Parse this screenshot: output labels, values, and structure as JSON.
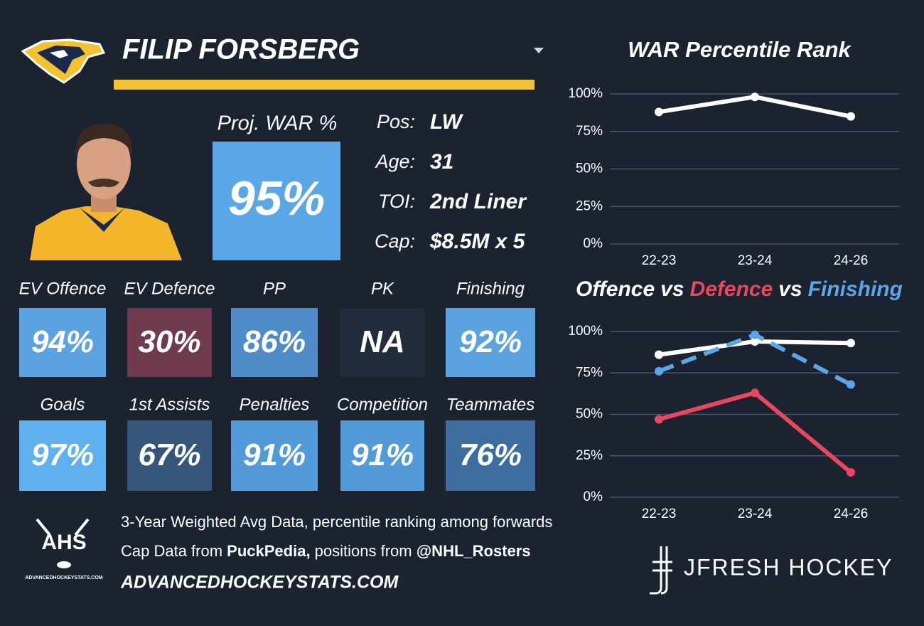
{
  "header": {
    "name": "FILIP FORSBERG",
    "bar_color": "#f4c131"
  },
  "proj_war": {
    "label": "Proj. WAR %",
    "value": "95%",
    "color": "#5aa6e6"
  },
  "info": [
    {
      "label": "Pos:",
      "value": "LW"
    },
    {
      "label": "Age:",
      "value": "31"
    },
    {
      "label": "TOI:",
      "value": "2nd Liner"
    },
    {
      "label": "Cap:",
      "value": "$8.5M x 5"
    }
  ],
  "tiles": [
    [
      {
        "label": "EV Offence",
        "value": "94%",
        "color": "#5aa2e0"
      },
      {
        "label": "EV Defence",
        "value": "30%",
        "color": "#6f3a4d"
      },
      {
        "label": "PP",
        "value": "86%",
        "color": "#4f8cc9"
      },
      {
        "label": "PK",
        "value": "NA",
        "color": "#212d3b"
      },
      {
        "label": "Finishing",
        "value": "92%",
        "color": "#5aa2e0"
      }
    ],
    [
      {
        "label": "Goals",
        "value": "97%",
        "color": "#5eb0f0"
      },
      {
        "label": "1st Assists",
        "value": "67%",
        "color": "#35557a"
      },
      {
        "label": "Penalties",
        "value": "91%",
        "color": "#529ad8"
      },
      {
        "label": "Competition",
        "value": "91%",
        "color": "#529ad8"
      },
      {
        "label": "Teammates",
        "value": "76%",
        "color": "#3d6d9e"
      }
    ]
  ],
  "footer": {
    "lines": [
      [
        {
          "text": "3-Year Weighted Avg Data, percentile ranking among forwards",
          "bold": false
        }
      ],
      [
        {
          "text": "Cap Data from ",
          "bold": false
        },
        {
          "text": "PuckPedia,",
          "bold": true
        },
        {
          "text": " positions from ",
          "bold": false
        },
        {
          "text": "@NHL_Rosters",
          "bold": true
        }
      ]
    ],
    "website": "ADVANCEDHOCKEYSTATS.COM",
    "logo_text": "AHS",
    "logo_subtext": "ADVANCEDHOCKEYSTATS.COM",
    "brand": "JFRESH HOCKEY"
  },
  "chart_data": [
    {
      "type": "line",
      "title": "WAR Percentile Rank",
      "categories": [
        "22-23",
        "23-24",
        "24-26"
      ],
      "series": [
        {
          "color": "#ffffff",
          "values": [
            88,
            98,
            85
          ],
          "dashed": false
        }
      ],
      "ylim": [
        0,
        100
      ],
      "yticks": [
        {
          "value": 0,
          "label": "0%"
        },
        {
          "value": 25,
          "label": "25%"
        },
        {
          "value": 50,
          "label": "50%"
        },
        {
          "value": 75,
          "label": "75%"
        },
        {
          "value": 100,
          "label": "100%"
        }
      ],
      "grid": true
    },
    {
      "type": "line",
      "title_separator": "vs",
      "categories": [
        "22-23",
        "23-24",
        "24-26"
      ],
      "series": [
        {
          "name": "Offence",
          "color": "#ffffff",
          "values": [
            86,
            94,
            93
          ],
          "dashed": false
        },
        {
          "name": "Defence",
          "color": "#e8475f",
          "values": [
            47,
            63,
            15
          ],
          "dashed": false
        },
        {
          "name": "Finishing",
          "color": "#5aa6e6",
          "values": [
            76,
            98,
            68
          ],
          "dashed": true
        }
      ],
      "ylim": [
        0,
        100
      ],
      "yticks": [
        {
          "value": 0,
          "label": "0%"
        },
        {
          "value": 25,
          "label": "25%"
        },
        {
          "value": 50,
          "label": "50%"
        },
        {
          "value": 75,
          "label": "75%"
        },
        {
          "value": 100,
          "label": "100%"
        }
      ],
      "grid": true
    }
  ]
}
